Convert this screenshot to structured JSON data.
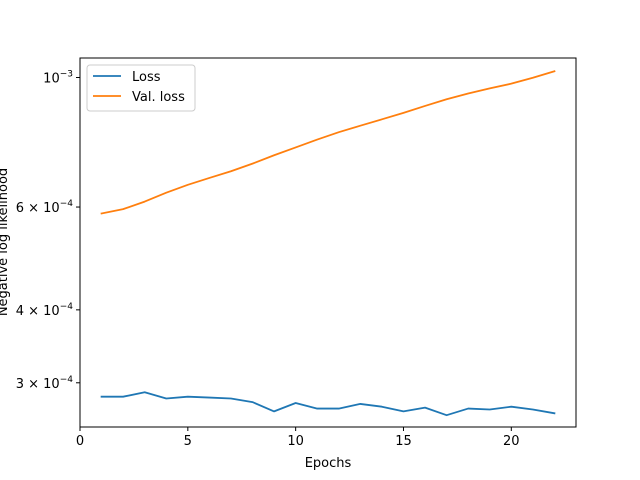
{
  "chart_data": {
    "type": "line",
    "xlabel": "Epochs",
    "ylabel": "Negative log likelihood",
    "yscale": "log",
    "xlim": [
      0,
      23
    ],
    "ylim": [
      0.000252,
      0.00108
    ],
    "grid": false,
    "legend": "top-left",
    "x_ticks": [
      {
        "value": 0,
        "label": "0"
      },
      {
        "value": 5,
        "label": "5"
      },
      {
        "value": 10,
        "label": "10"
      },
      {
        "value": 15,
        "label": "15"
      },
      {
        "value": 20,
        "label": "20"
      }
    ],
    "y_ticks": [
      {
        "value": 0.0003,
        "mantissa": "3",
        "exp": "−4"
      },
      {
        "value": 0.0004,
        "mantissa": "4",
        "exp": "−4"
      },
      {
        "value": 0.0006,
        "mantissa": "6",
        "exp": "−4"
      },
      {
        "value": 0.001,
        "mantissa": "",
        "exp": "−3"
      }
    ],
    "x": [
      1,
      2,
      3,
      4,
      5,
      6,
      7,
      8,
      9,
      10,
      11,
      12,
      13,
      14,
      15,
      16,
      17,
      18,
      19,
      20,
      21,
      22
    ],
    "series": [
      {
        "name": "Loss",
        "color": "#1f77b4",
        "values": [
          0.000284,
          0.000284,
          0.000289,
          0.000282,
          0.000284,
          0.000283,
          0.000282,
          0.000278,
          0.000268,
          0.000277,
          0.000271,
          0.000271,
          0.000276,
          0.000273,
          0.000268,
          0.000272,
          0.000264,
          0.000271,
          0.00027,
          0.000273,
          0.00027,
          0.000266
        ]
      },
      {
        "name": "Val. loss",
        "color": "#ff7f0e",
        "values": [
          0.000585,
          0.000595,
          0.000613,
          0.000635,
          0.000655,
          0.000673,
          0.000691,
          0.000712,
          0.000736,
          0.000759,
          0.000783,
          0.000806,
          0.000827,
          0.000848,
          0.00087,
          0.000894,
          0.000918,
          0.000939,
          0.000958,
          0.000976,
          0.000999,
          0.001025
        ]
      }
    ]
  }
}
